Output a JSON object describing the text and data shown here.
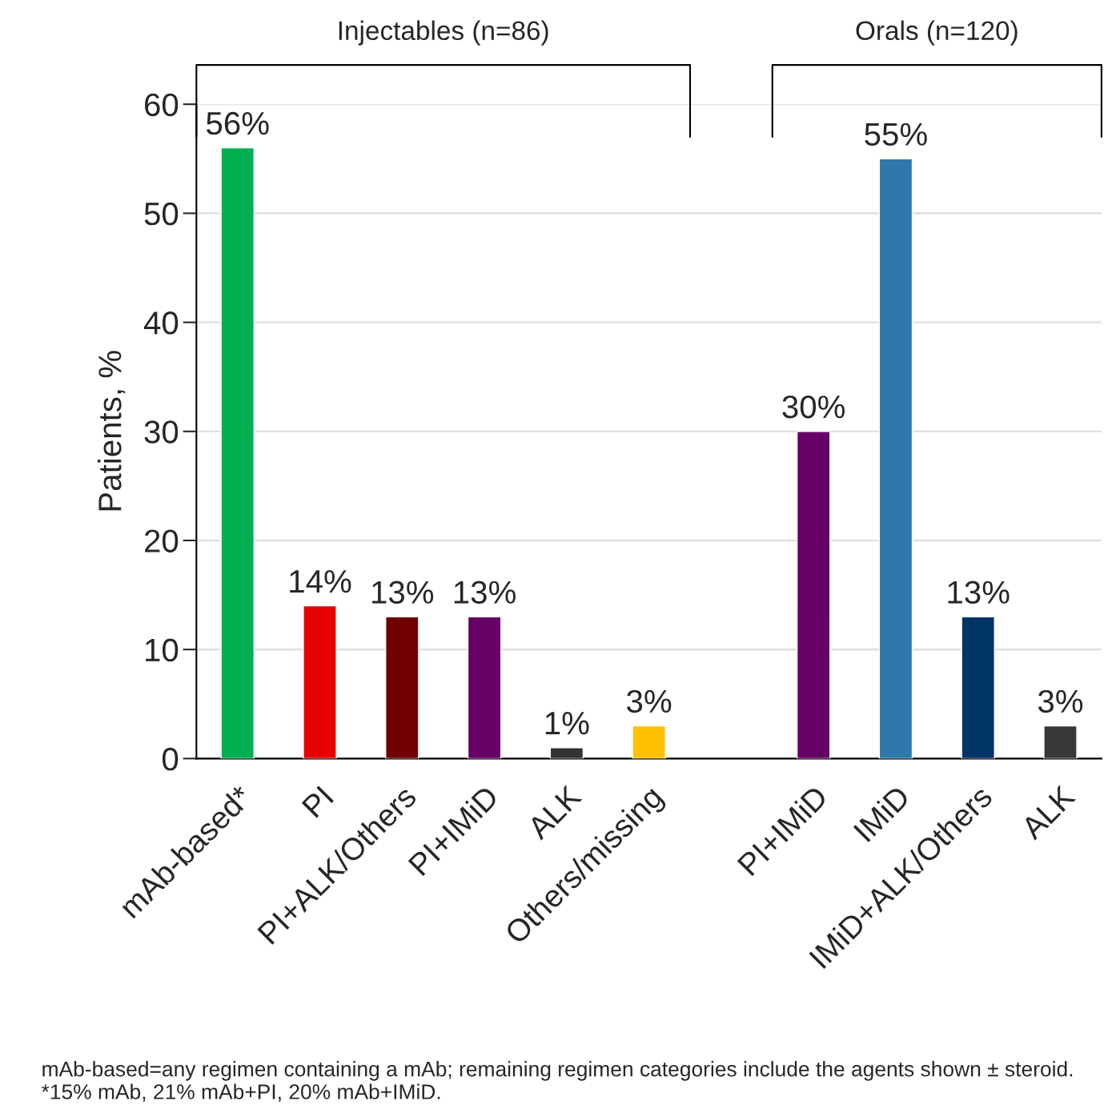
{
  "chart_data": {
    "type": "bar",
    "ylabel": "Patients, %",
    "categories": [
      "mAb-based*",
      "PI",
      "PI+ALK/Others",
      "PI+IMiD",
      "ALK",
      "Others/missing",
      null,
      "PI+IMiD",
      "IMiD",
      "IMiD+ALK/Others",
      "ALK"
    ],
    "values": [
      56,
      14,
      13,
      13,
      1,
      3,
      null,
      30,
      55,
      13,
      3
    ],
    "colors": [
      "#00b050",
      "#e60000",
      "#700000",
      "#660066",
      "#333333",
      "#ffc000",
      "#ffffff",
      "#660066",
      "#2e78ab",
      "#003366",
      "#38383b"
    ],
    "value_labels": [
      "56%",
      "14%",
      "13%",
      "13%",
      "1%",
      "3%",
      null,
      "30%",
      "55%",
      "13%",
      "3%"
    ],
    "ylim": [
      0,
      60
    ],
    "yticks": [
      0,
      10,
      20,
      30,
      40,
      50,
      60
    ],
    "grid": "y",
    "legend": false,
    "annotations": [
      "Injectables (n=86)",
      "Orals (n=120)",
      "mAb-based=any regimen containing a mAb; remaining regimen categories include the agents shown ± steroid. *15% mAb, 21% mAb+PI, 20% mAb+IMiD."
    ]
  }
}
